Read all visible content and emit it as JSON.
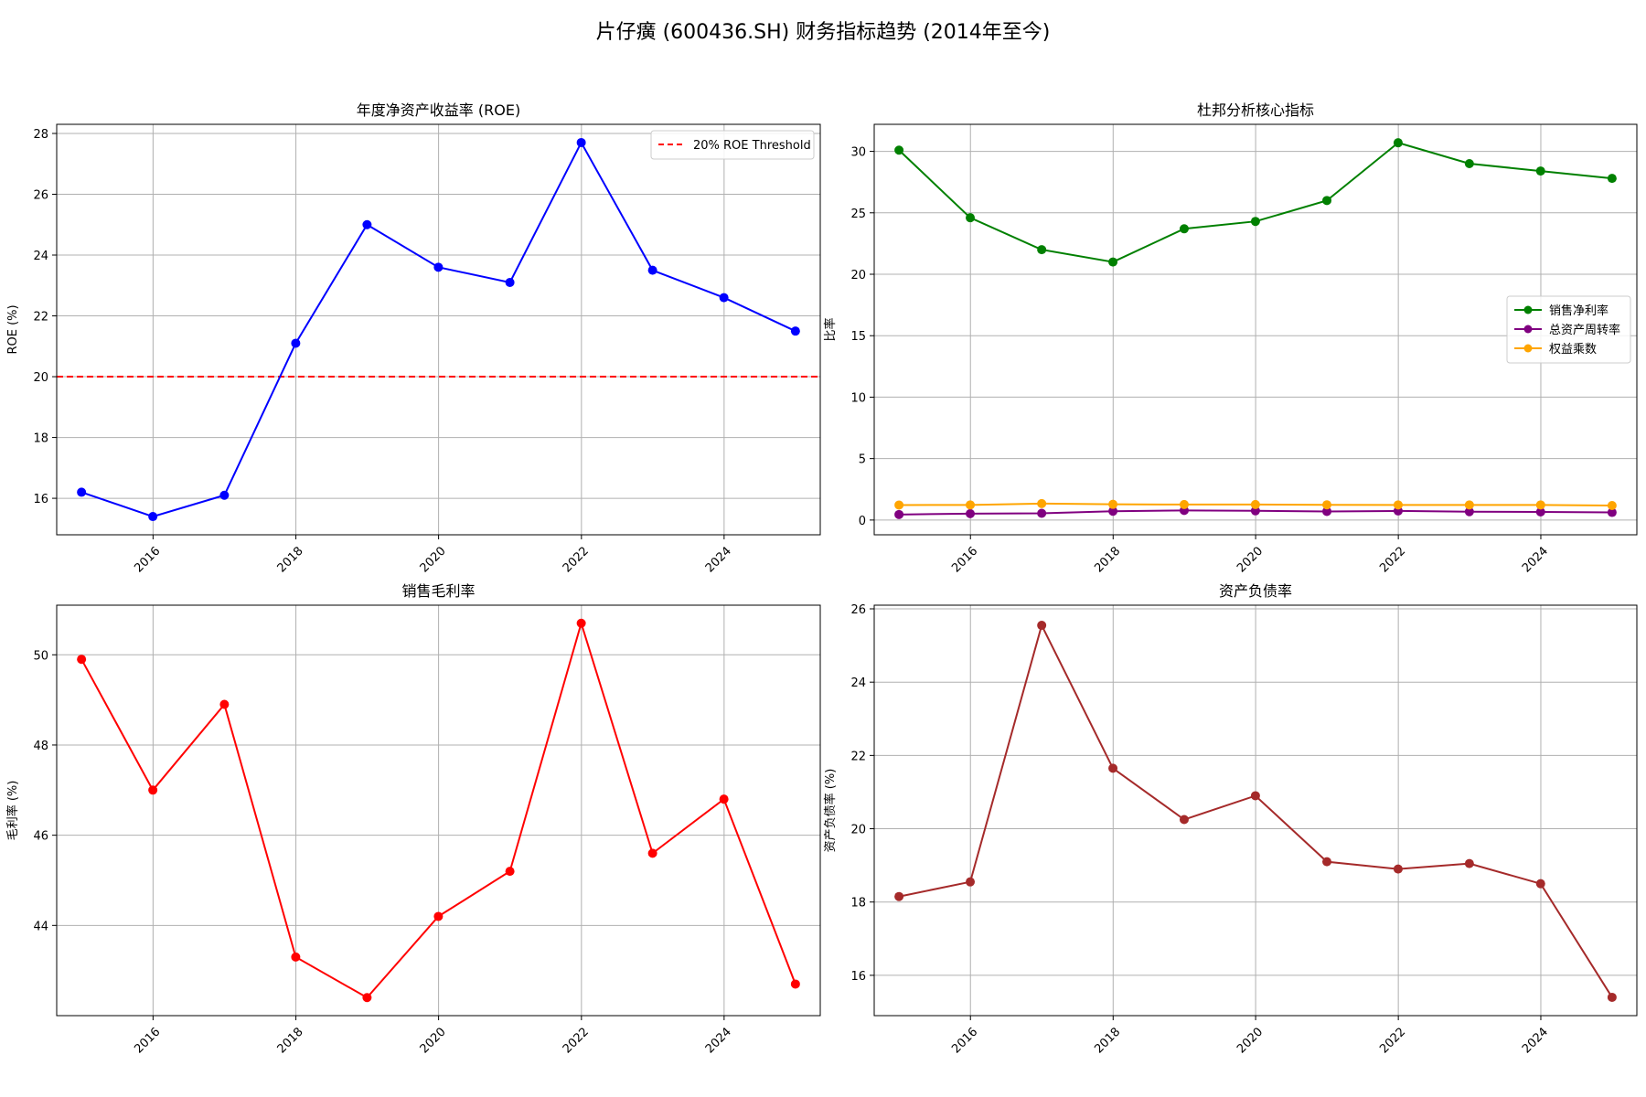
{
  "title": "片仔癀 (600436.SH) 财务指标趋势 (2014年至今)",
  "chart_data": [
    {
      "type": "line",
      "title": "年度净资产收益率 (ROE)",
      "xlabel": "",
      "ylabel": "ROE (%)",
      "x": [
        "2014-12-31",
        "2015-12-31",
        "2016-12-31",
        "2017-12-31",
        "2018-12-31",
        "2019-12-31",
        "2020-12-31",
        "2021-12-31",
        "2022-12-31",
        "2023-12-31",
        "2024-12-31"
      ],
      "xticks": [
        "2016",
        "2018",
        "2020",
        "2022",
        "2024"
      ],
      "yticks": [
        16,
        18,
        20,
        22,
        24,
        26,
        28
      ],
      "ylim": [
        14.8,
        28.3
      ],
      "grid": true,
      "legend_position": "top-right",
      "series": [
        {
          "color": "#0000ff",
          "marker": "circle",
          "values": [
            16.2,
            15.4,
            16.1,
            21.1,
            25.0,
            23.6,
            23.1,
            27.7,
            23.5,
            22.6,
            21.5
          ]
        }
      ],
      "reference_lines": [
        {
          "name": "20% ROE Threshold",
          "y": 20,
          "color": "#ff0000",
          "style": "dashed"
        }
      ]
    },
    {
      "type": "line",
      "title": "杜邦分析核心指标",
      "xlabel": "",
      "ylabel": "比率",
      "x": [
        "2014-12-31",
        "2015-12-31",
        "2016-12-31",
        "2017-12-31",
        "2018-12-31",
        "2019-12-31",
        "2020-12-31",
        "2021-12-31",
        "2022-12-31",
        "2023-12-31",
        "2024-12-31"
      ],
      "xticks": [
        "2016",
        "2018",
        "2020",
        "2022",
        "2024"
      ],
      "yticks": [
        0,
        5,
        10,
        15,
        20,
        25,
        30
      ],
      "ylim": [
        -1.2,
        32.2
      ],
      "grid": true,
      "legend_position": "center-right",
      "series": [
        {
          "name": "销售净利率",
          "color": "#008000",
          "marker": "circle",
          "values": [
            30.1,
            24.6,
            22.0,
            21.0,
            23.7,
            24.3,
            26.0,
            30.7,
            29.0,
            28.4,
            27.8
          ]
        },
        {
          "name": "总资产周转率",
          "color": "#800080",
          "marker": "circle",
          "values": [
            0.45,
            0.52,
            0.55,
            0.72,
            0.78,
            0.75,
            0.7,
            0.74,
            0.68,
            0.66,
            0.62
          ]
        },
        {
          "name": "权益乘数",
          "color": "#ffa500",
          "marker": "circle",
          "values": [
            1.22,
            1.23,
            1.34,
            1.28,
            1.26,
            1.26,
            1.24,
            1.23,
            1.23,
            1.23,
            1.18
          ]
        }
      ]
    },
    {
      "type": "line",
      "title": "销售毛利率",
      "xlabel": "",
      "ylabel": "毛利率 (%)",
      "x": [
        "2014-12-31",
        "2015-12-31",
        "2016-12-31",
        "2017-12-31",
        "2018-12-31",
        "2019-12-31",
        "2020-12-31",
        "2021-12-31",
        "2022-12-31",
        "2023-12-31",
        "2024-12-31"
      ],
      "xticks": [
        "2016",
        "2018",
        "2020",
        "2022",
        "2024"
      ],
      "yticks": [
        44,
        46,
        48,
        50
      ],
      "ylim": [
        42.0,
        51.1
      ],
      "grid": true,
      "series": [
        {
          "color": "#ff0000",
          "marker": "circle",
          "values": [
            49.9,
            47.0,
            48.9,
            43.3,
            42.4,
            44.2,
            45.2,
            50.7,
            45.6,
            46.8,
            42.7
          ]
        }
      ]
    },
    {
      "type": "line",
      "title": "资产负债率",
      "xlabel": "",
      "ylabel": "资产负债率 (%)",
      "x": [
        "2014-12-31",
        "2015-12-31",
        "2016-12-31",
        "2017-12-31",
        "2018-12-31",
        "2019-12-31",
        "2020-12-31",
        "2021-12-31",
        "2022-12-31",
        "2023-12-31",
        "2024-12-31"
      ],
      "xticks": [
        "2016",
        "2018",
        "2020",
        "2022",
        "2024"
      ],
      "yticks": [
        16,
        18,
        20,
        22,
        24,
        26
      ],
      "ylim": [
        14.9,
        26.1
      ],
      "grid": true,
      "series": [
        {
          "color": "#a52a2a",
          "marker": "circle",
          "values": [
            18.15,
            18.55,
            25.55,
            21.65,
            20.25,
            20.9,
            19.1,
            18.9,
            19.05,
            18.5,
            15.4
          ]
        }
      ]
    }
  ]
}
